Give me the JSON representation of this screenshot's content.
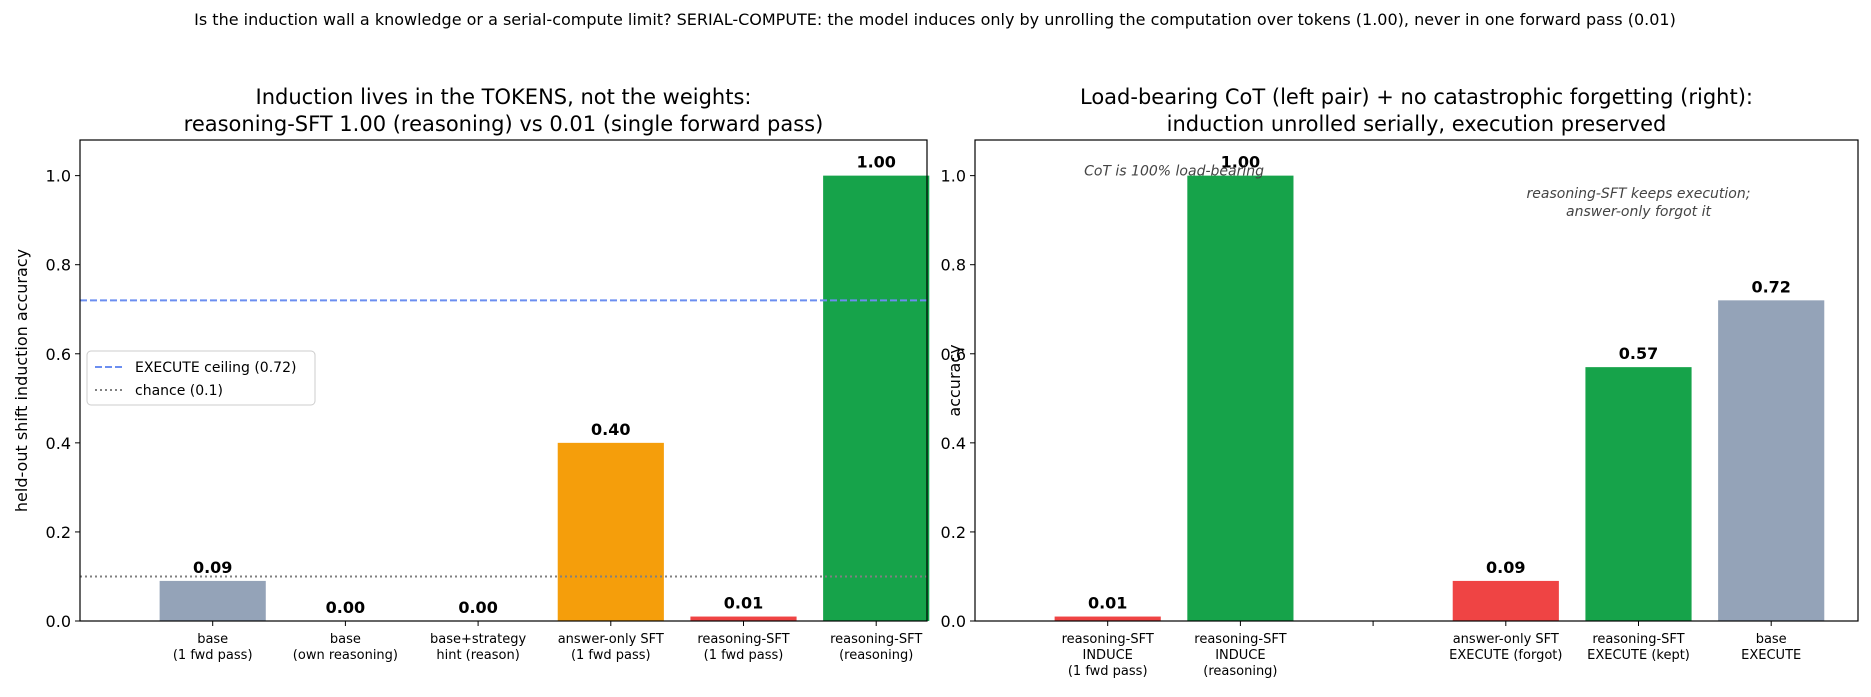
{
  "suptitle": "Is the induction wall a knowledge or a serial-compute limit? SERIAL-COMPUTE: the model induces only by unrolling the computation over tokens (1.00), never in one forward pass (0.01)",
  "chart_data": [
    {
      "type": "bar",
      "title_lines": [
        "Induction lives in the TOKENS, not the weights:",
        "reasoning-SFT 1.00 (reasoning) vs 0.01 (single forward pass)"
      ],
      "xlabel": "",
      "ylabel": "held-out shift induction accuracy",
      "ylim": [
        0,
        1.08
      ],
      "yticks": [
        "0.0",
        "0.2",
        "0.4",
        "0.6",
        "0.8",
        "1.0"
      ],
      "grid": false,
      "categories": [
        [
          "base",
          "(1 fwd pass)"
        ],
        [
          "base",
          "(own reasoning)"
        ],
        [
          "base+strategy",
          "hint (reason)"
        ],
        [
          "answer-only SFT",
          "(1 fwd pass)"
        ],
        [
          "reasoning-SFT",
          "(1 fwd pass)"
        ],
        [
          "reasoning-SFT",
          "(reasoning)"
        ]
      ],
      "values": [
        0.09,
        0.0,
        0.0,
        0.4,
        0.01,
        1.0
      ],
      "value_labels": [
        "0.09",
        "0.00",
        "0.00",
        "0.40",
        "0.01",
        "1.00"
      ],
      "colors": [
        "#94a3b8",
        "#94a3b8",
        "#94a3b8",
        "#f59e0b",
        "#ef4444",
        "#16a34a"
      ],
      "reference_lines": [
        {
          "name": "EXECUTE ceiling (0.72)",
          "y": 0.72,
          "color": "#6b8ef0",
          "style": "dashed"
        },
        {
          "name": "chance (0.1)",
          "y": 0.1,
          "color": "#808080",
          "style": "dotted"
        }
      ],
      "legend_position": "center-left"
    },
    {
      "type": "bar",
      "title_lines": [
        "Load-bearing CoT (left pair) + no catastrophic forgetting (right):",
        "induction unrolled serially, execution preserved"
      ],
      "xlabel": "",
      "ylabel": "accuracy",
      "ylim": [
        0,
        1.08
      ],
      "yticks": [
        "0.0",
        "0.2",
        "0.4",
        "0.6",
        "0.8",
        "1.0"
      ],
      "grid": false,
      "categories": [
        [
          "reasoning-SFT",
          "INDUCE",
          "(1 fwd pass)"
        ],
        [
          "reasoning-SFT",
          "INDUCE",
          "(reasoning)"
        ],
        [
          ""
        ],
        [
          "answer-only SFT",
          "EXECUTE (forgot)"
        ],
        [
          "reasoning-SFT",
          "EXECUTE (kept)"
        ],
        [
          "base",
          "EXECUTE"
        ]
      ],
      "values": [
        0.01,
        1.0,
        null,
        0.09,
        0.57,
        0.72
      ],
      "value_labels": [
        "0.01",
        "1.00",
        "",
        "0.09",
        "0.57",
        "0.72"
      ],
      "colors": [
        "#ef4444",
        "#16a34a",
        "#ffffff",
        "#ef4444",
        "#16a34a",
        "#94a3b8"
      ],
      "annotations": [
        {
          "lines": [
            "CoT is 100% load-bearing"
          ],
          "x": 0.5,
          "y": 1.0
        },
        {
          "lines": [
            "reasoning-SFT keeps execution;",
            "answer-only forgot it"
          ],
          "x": 4.0,
          "y": 0.95
        }
      ]
    }
  ]
}
